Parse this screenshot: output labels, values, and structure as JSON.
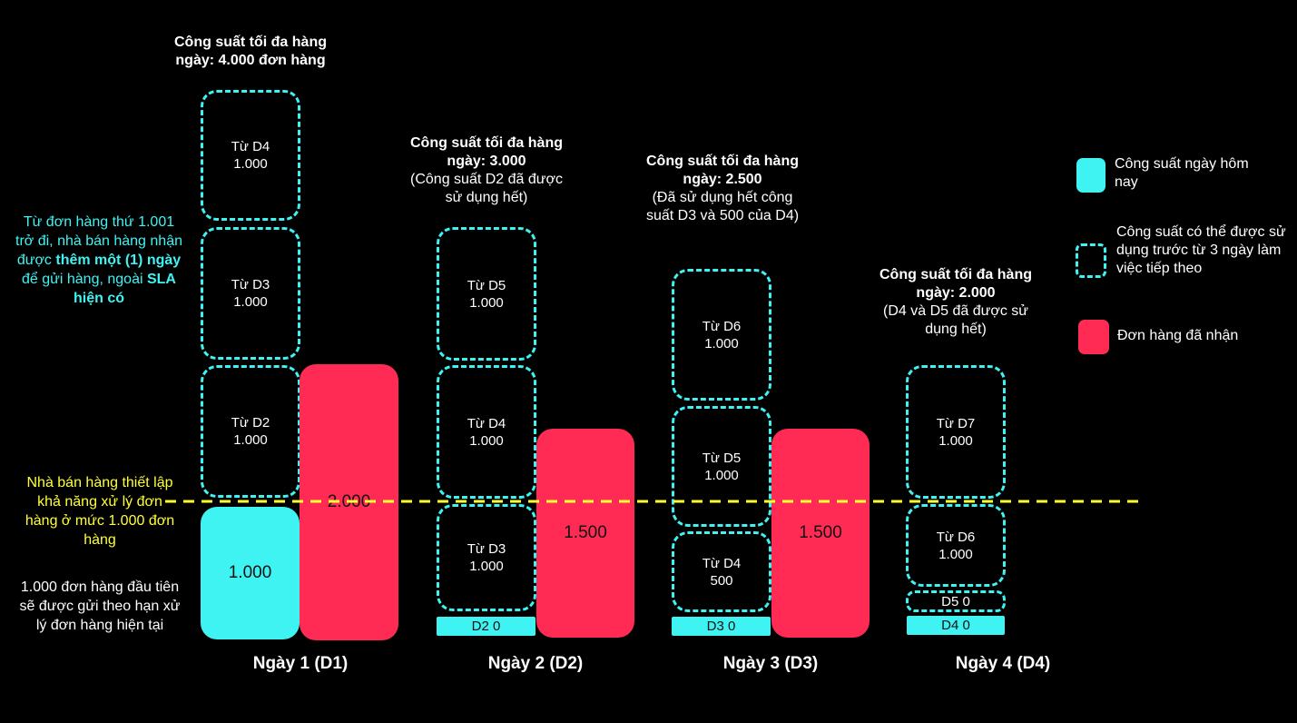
{
  "day1": {
    "title_bold": "Công suất tối đa hàng ngày: 4.000 đơn hàng",
    "boxes": [
      {
        "from": "Từ D4",
        "value": "1.000"
      },
      {
        "from": "Từ D3",
        "value": "1.000"
      },
      {
        "from": "Từ D2",
        "value": "1.000"
      }
    ],
    "today_capacity": "1.000",
    "orders": "2.000",
    "label": "Ngày 1 (D1)"
  },
  "day2": {
    "title_bold": "Công suất tối đa hàng ngày: 3.000",
    "title_note": "(Công suất D2 đã được sử dụng hết)",
    "boxes": [
      {
        "from": "Từ D5",
        "value": "1.000"
      },
      {
        "from": "Từ D4",
        "value": "1.000"
      },
      {
        "from": "Từ D3",
        "value": "1.000"
      }
    ],
    "today_capacity": "D2 0",
    "orders": "1.500",
    "label": "Ngày 2 (D2)"
  },
  "day3": {
    "title_bold": "Công suất tối đa hàng ngày: 2.500",
    "title_note": "(Đã sử dụng hết công suất D3 và 500 của D4)",
    "boxes": [
      {
        "from": "Từ D6",
        "value": "1.000"
      },
      {
        "from": "Từ D5",
        "value": "1.000"
      },
      {
        "from": "Từ D4",
        "value": "500"
      }
    ],
    "today_capacity": "D3 0",
    "orders": "1.500",
    "label": "Ngày 3 (D3)"
  },
  "day4": {
    "title_bold": "Công suất tối đa hàng ngày: 2.000",
    "title_note": "(D4 và D5 đã được sử dụng hết)",
    "boxes": [
      {
        "from": "Từ D7",
        "value": "1.000"
      },
      {
        "from": "Từ D6",
        "value": "1.000"
      }
    ],
    "small_box": "D5 0",
    "today_capacity": "D4 0",
    "label": "Ngày 4 (D4)"
  },
  "left_notes": {
    "cyan_part1": "Từ đơn hàng thứ 1.001 trở đi, nhà bán hàng nhận được ",
    "cyan_bold1": "thêm một (1) ngày",
    "cyan_part2": " để gửi hàng, ngoài ",
    "cyan_bold2": "SLA hiện có",
    "yellow": "Nhà bán hàng thiết lập khả năng xử lý đơn hàng ở mức 1.000 đơn hàng",
    "white": "1.000 đơn hàng đầu tiên sẽ được gửi theo hạn xử lý đơn hàng hiện tại"
  },
  "legend": {
    "today": "Công suất ngày hôm nay",
    "borrowed": "Công suất có thể được sử dụng trước từ 3 ngày làm việc tiếp theo",
    "orders": "Đơn hàng đã nhận"
  },
  "colors": {
    "cyan": "#3ff3f3",
    "red": "#ff2b55",
    "yellow": "#ffff33",
    "background": "#000000"
  }
}
